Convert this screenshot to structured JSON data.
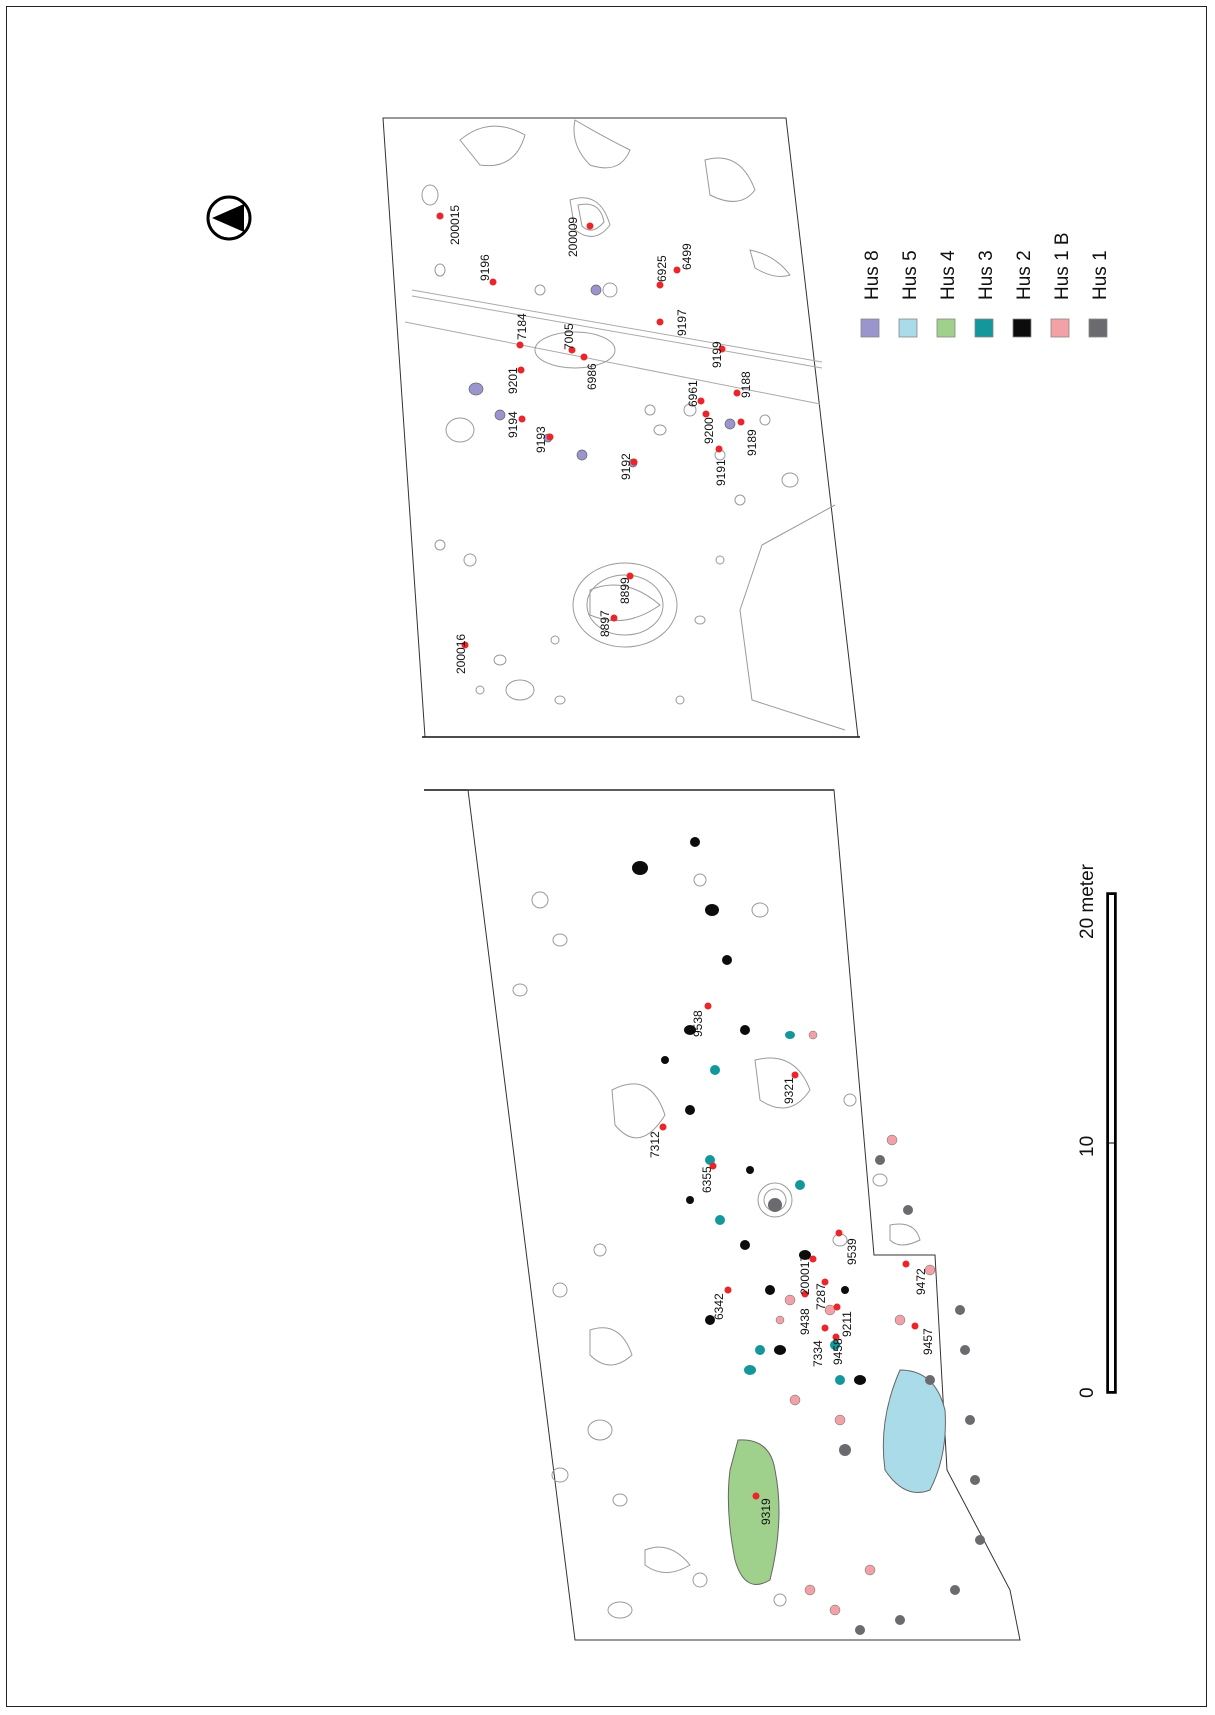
{
  "legend": [
    {
      "label": "Hus 8",
      "color": "#9a95cc"
    },
    {
      "label": "Hus 5",
      "color": "#a9dbe8"
    },
    {
      "label": "Hus 4",
      "color": "#9fd08c"
    },
    {
      "label": "Hus 3",
      "color": "#13979b"
    },
    {
      "label": "Hus 2",
      "color": "#0c0c0c"
    },
    {
      "label": "Hus 1 B",
      "color": "#f2a2a6"
    },
    {
      "label": "Hus 1",
      "color": "#6b6b6f"
    }
  ],
  "scale_bar": {
    "zero": "0",
    "mid": "10",
    "end": "20 meter"
  },
  "north_arrow": {
    "icon": "north-arrow-icon"
  },
  "feature_labels": [
    "200015",
    "200009",
    "6499",
    "6925",
    "9196",
    "7184",
    "7005",
    "9201",
    "6986",
    "9197",
    "9199",
    "9188",
    "6961",
    "9194",
    "9193",
    "9200",
    "9189",
    "9191",
    "9192",
    "8899",
    "8897",
    "200016",
    "9538",
    "9321",
    "7312",
    "6355",
    "9539",
    "9472",
    "200017",
    "7287",
    "6342",
    "9438",
    "9211",
    "7334",
    "9458",
    "9457",
    "9319"
  ],
  "colors": {
    "post_hole_marker": "#e8262b",
    "outline": "#9a9a9a",
    "boundary": "#333333"
  }
}
